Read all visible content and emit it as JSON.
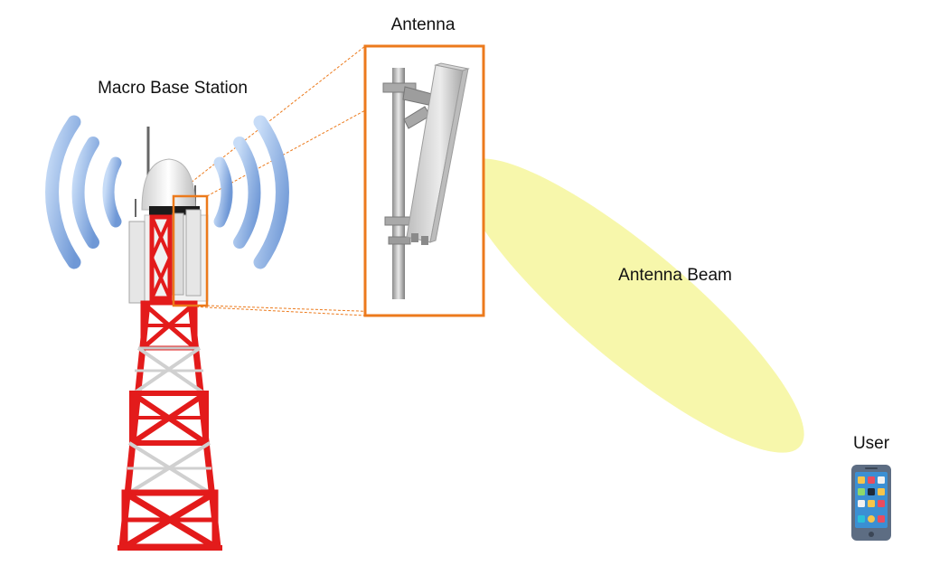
{
  "labels": {
    "base_station": "Macro Base Station",
    "antenna": "Antenna",
    "beam": "Antenna Beam",
    "user": "User"
  },
  "icons": [
    "radio-waves-icon",
    "cell-tower-icon",
    "sector-antenna-icon",
    "smartphone-icon"
  ],
  "colors": {
    "zoom_box": "#ec7a1c",
    "beam": "#f7f7a6",
    "wave": "#8fb4e8",
    "tower_red": "#e31b1b",
    "tower_white": "#f3f3f3",
    "antenna_panel": "#e4e4e4",
    "phone_body": "#5d6d83"
  }
}
